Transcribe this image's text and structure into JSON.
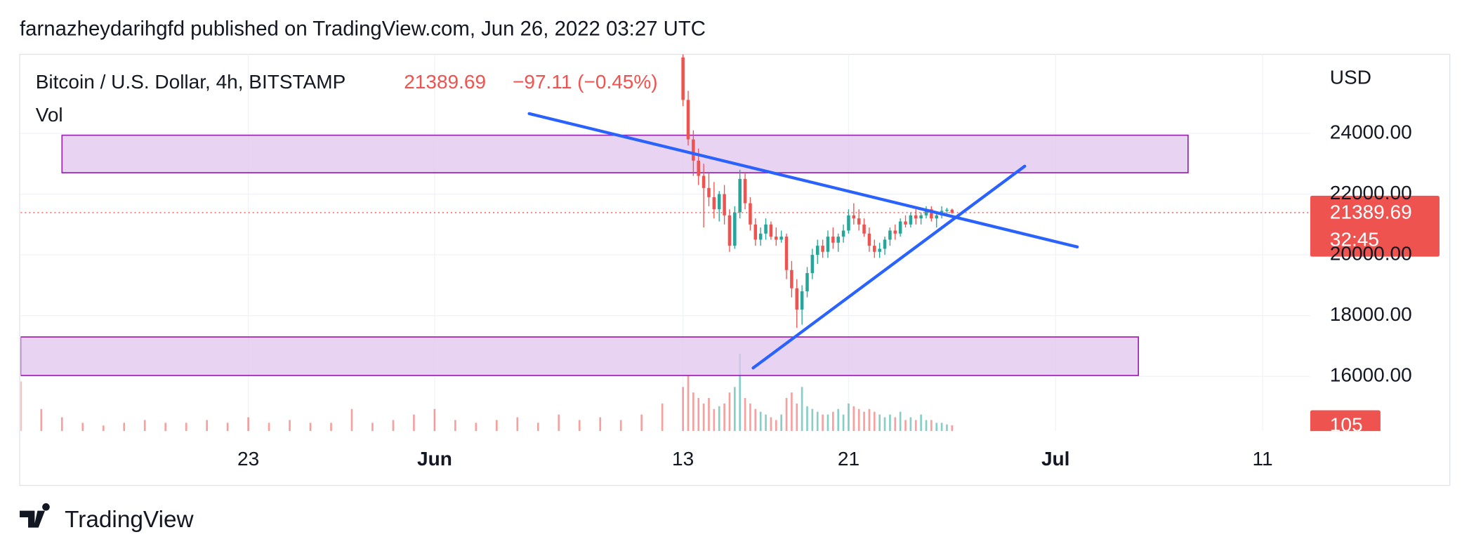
{
  "header": "farnazheydarihgfd published on TradingView.com, Jun 26, 2022 03:27 UTC",
  "footer": {
    "brand": "TradingView"
  },
  "chart_data": {
    "type": "candlestick",
    "title": "Bitcoin / U.S. Dollar, 4h, BITSTAMP",
    "legend_price": "21389.69",
    "legend_change": "−97.11 (−0.45%)",
    "currency": "USD",
    "price_label": "21389.69",
    "countdown": "32:45",
    "up_color": "#26a69a",
    "down_color": "#ef5350",
    "grid": true,
    "xlim": [
      132,
      194.3
    ],
    "ylim": [
      14200,
      26600
    ],
    "xticks": [
      {
        "value": 143,
        "label": "23"
      },
      {
        "value": 152,
        "label": "Jun"
      },
      {
        "value": 164,
        "label": "13"
      },
      {
        "value": 172,
        "label": "21"
      },
      {
        "value": 182,
        "label": "Jul"
      },
      {
        "value": 192,
        "label": "11"
      }
    ],
    "yticks": [
      {
        "value": 16000,
        "label": "16000.00"
      },
      {
        "value": 18000,
        "label": "18000.00"
      },
      {
        "value": 20000,
        "label": "20000.00"
      },
      {
        "value": 22000,
        "label": "22000.00"
      },
      {
        "value": 24000,
        "label": "24000.00"
      }
    ],
    "candles": {
      "x": [
        164,
        164.25,
        164.5,
        164.75,
        165,
        165.25,
        165.5,
        165.75,
        166,
        166.25,
        166.5,
        166.75,
        167,
        167.25,
        167.5,
        167.75,
        168,
        168.25,
        168.5,
        168.75,
        169,
        169.25,
        169.5,
        169.75,
        170,
        170.25,
        170.5,
        170.75,
        171,
        171.25,
        171.5,
        171.75,
        172,
        172.25,
        172.5,
        172.75,
        173,
        173.25,
        173.5,
        173.75,
        174,
        174.25,
        174.5,
        174.75,
        175,
        175.25,
        175.5,
        175.75,
        176,
        176.25,
        176.5,
        176.75,
        177
      ],
      "ohlc": [
        [
          26500,
          26800,
          24900,
          25100
        ],
        [
          25100,
          25400,
          23600,
          23800
        ],
        [
          23800,
          24100,
          22600,
          23100
        ],
        [
          23100,
          23500,
          22300,
          22600
        ],
        [
          22600,
          23000,
          20900,
          22200
        ],
        [
          22200,
          22700,
          21600,
          21900
        ],
        [
          21900,
          22400,
          21200,
          21500
        ],
        [
          21500,
          22100,
          21100,
          22000
        ],
        [
          22000,
          22300,
          21000,
          21300
        ],
        [
          21300,
          21500,
          20100,
          20300
        ],
        [
          20300,
          21600,
          20200,
          21400
        ],
        [
          21400,
          22800,
          21200,
          22500
        ],
        [
          22500,
          22700,
          21500,
          21700
        ],
        [
          21700,
          21900,
          20800,
          21000
        ],
        [
          21000,
          21200,
          20300,
          20500
        ],
        [
          20500,
          20900,
          20300,
          20700
        ],
        [
          20700,
          21200,
          20500,
          21000
        ],
        [
          21000,
          21100,
          20500,
          20600
        ],
        [
          20600,
          20900,
          20300,
          20500
        ],
        [
          20500,
          20800,
          20400,
          20600
        ],
        [
          20600,
          20700,
          19200,
          19500
        ],
        [
          19500,
          19800,
          18600,
          18900
        ],
        [
          18900,
          19200,
          17600,
          18200
        ],
        [
          18200,
          19000,
          17700,
          18800
        ],
        [
          18800,
          19600,
          18600,
          19400
        ],
        [
          19400,
          20200,
          19200,
          20000
        ],
        [
          20000,
          20500,
          19700,
          20300
        ],
        [
          20300,
          20500,
          19900,
          20100
        ],
        [
          20100,
          20800,
          19900,
          20600
        ],
        [
          20600,
          20900,
          20200,
          20400
        ],
        [
          20400,
          20700,
          20100,
          20600
        ],
        [
          20600,
          21000,
          20400,
          20800
        ],
        [
          20800,
          21500,
          20700,
          21300
        ],
        [
          21300,
          21700,
          21000,
          21200
        ],
        [
          21200,
          21500,
          20800,
          21000
        ],
        [
          21000,
          21200,
          20600,
          20700
        ],
        [
          20700,
          20900,
          20100,
          20300
        ],
        [
          20300,
          20500,
          19900,
          20100
        ],
        [
          20100,
          20400,
          19900,
          20200
        ],
        [
          20200,
          20600,
          20000,
          20500
        ],
        [
          20500,
          20900,
          20300,
          20800
        ],
        [
          20800,
          21000,
          20500,
          20700
        ],
        [
          20700,
          21200,
          20600,
          21100
        ],
        [
          21100,
          21300,
          20900,
          21000
        ],
        [
          21000,
          21400,
          20900,
          21300
        ],
        [
          21300,
          21500,
          21000,
          21200
        ],
        [
          21200,
          21400,
          21000,
          21300
        ],
        [
          21300,
          21600,
          21200,
          21500
        ],
        [
          21500,
          21600,
          21100,
          21200
        ],
        [
          21200,
          21400,
          20900,
          21300
        ],
        [
          21300,
          21600,
          21200,
          21450
        ],
        [
          21450,
          21550,
          21300,
          21486.8
        ],
        [
          21486.8,
          21520,
          21350,
          21389.69
        ]
      ]
    },
    "volume": {
      "name": "Vol",
      "last_label": "105",
      "ylim": [
        0,
        1700
      ],
      "x": [
        132,
        133,
        134,
        135,
        136,
        137,
        138,
        139,
        140,
        141,
        142,
        143,
        144,
        145,
        146,
        147,
        148,
        149,
        150,
        151,
        152,
        153,
        154,
        155,
        156,
        157,
        158,
        159,
        160,
        161,
        162,
        163,
        164,
        164.25,
        164.5,
        164.75,
        165,
        165.25,
        165.5,
        165.75,
        166,
        166.25,
        166.5,
        166.75,
        167,
        167.25,
        167.5,
        167.75,
        168,
        168.25,
        168.5,
        168.75,
        169,
        169.25,
        169.5,
        169.75,
        170,
        170.25,
        170.5,
        170.75,
        171,
        171.25,
        171.5,
        171.75,
        172,
        172.25,
        172.5,
        172.75,
        173,
        173.25,
        173.5,
        173.75,
        174,
        174.25,
        174.5,
        174.75,
        175,
        175.25,
        175.5,
        175.75,
        176,
        176.25,
        176.5,
        176.75,
        177
      ],
      "values": [
        900,
        400,
        250,
        150,
        100,
        150,
        200,
        150,
        150,
        200,
        150,
        250,
        150,
        200,
        150,
        150,
        400,
        150,
        200,
        300,
        400,
        200,
        150,
        200,
        250,
        150,
        300,
        200,
        250,
        200,
        300,
        500,
        800,
        1000,
        700,
        600,
        500,
        600,
        400,
        450,
        500,
        700,
        800,
        1400,
        600,
        500,
        400,
        350,
        300,
        250,
        200,
        300,
        600,
        700,
        500,
        800,
        450,
        400,
        350,
        300,
        300,
        350,
        400,
        300,
        500,
        450,
        400,
        350,
        400,
        350,
        300,
        250,
        300,
        250,
        350,
        200,
        250,
        200,
        300,
        200,
        200,
        150,
        150,
        120,
        105
      ]
    },
    "zones": [
      {
        "color": "#e1c4ee",
        "x": [
          134,
          188.4
        ],
        "y": [
          22703,
          23938
        ]
      },
      {
        "color": "#e1c4ee",
        "x": [
          132,
          186
        ],
        "y": [
          16031,
          17297
        ]
      }
    ],
    "trendlines": [
      {
        "color": "#2962ff",
        "x": [
          156.57,
          183.05
        ],
        "y": [
          24649,
          20262
        ]
      },
      {
        "color": "#2962ff",
        "x": [
          167.39,
          180.51
        ],
        "y": [
          16277,
          22919
        ]
      }
    ]
  }
}
